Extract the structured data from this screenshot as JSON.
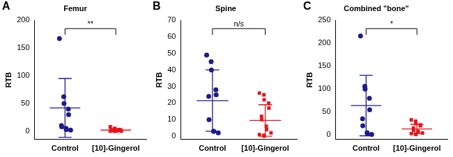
{
  "chart_data": [
    {
      "type": "scatter",
      "panel": "A",
      "title": "Femur",
      "y_label": "RTB",
      "ylim": [
        -15,
        200
      ],
      "yticks": [
        0,
        50,
        100,
        150,
        200
      ],
      "significance": "**",
      "series": [
        {
          "name": "Control",
          "color": "#1c1c8a",
          "marker": "circle",
          "values": [
            167,
            62,
            50,
            40,
            30,
            10,
            8,
            5,
            3,
            2
          ],
          "mean": 42,
          "error": 53
        },
        {
          "name": "[10]-Gingerol",
          "color": "#e8141b",
          "marker": "square",
          "values": [
            8,
            5,
            4,
            3,
            2,
            2,
            1,
            1,
            0.5,
            0,
            0,
            0,
            0
          ],
          "mean": 2,
          "error": 2.5
        }
      ]
    },
    {
      "type": "scatter",
      "panel": "B",
      "title": "Spine",
      "y_label": "RTB",
      "ylim": [
        -2,
        70
      ],
      "yticks": [
        0,
        10,
        20,
        30,
        40,
        50,
        60,
        70
      ],
      "significance": "n/s",
      "series": [
        {
          "name": "Control",
          "color": "#1c1c8a",
          "marker": "circle",
          "values": [
            49,
            45,
            40,
            28,
            25,
            24,
            10,
            3,
            3,
            2
          ],
          "mean": 21.5,
          "error": 18.5
        },
        {
          "name": "[10]-Gingerol",
          "color": "#e8141b",
          "marker": "square",
          "values": [
            26,
            25,
            22,
            20,
            17,
            12,
            10,
            6,
            4,
            2,
            1,
            0.5,
            0
          ],
          "mean": 9.5,
          "error": 9.5
        }
      ]
    },
    {
      "type": "scatter",
      "panel": "C",
      "title": "Combined \"bone\"",
      "y_label": "RTB",
      "ylim": [
        -10,
        250
      ],
      "yticks": [
        0,
        50,
        100,
        150,
        200,
        250
      ],
      "significance": "*",
      "series": [
        {
          "name": "Control",
          "color": "#1c1c8a",
          "marker": "circle",
          "values": [
            216,
            106,
            100,
            80,
            55,
            35,
            20,
            5,
            3,
            1
          ],
          "mean": 64,
          "error": 66
        },
        {
          "name": "[10]-Gingerol",
          "color": "#e8141b",
          "marker": "square",
          "values": [
            33,
            30,
            25,
            22,
            20,
            15,
            10,
            8,
            6,
            4,
            3,
            2,
            1
          ],
          "mean": 13,
          "error": 10
        }
      ]
    }
  ]
}
